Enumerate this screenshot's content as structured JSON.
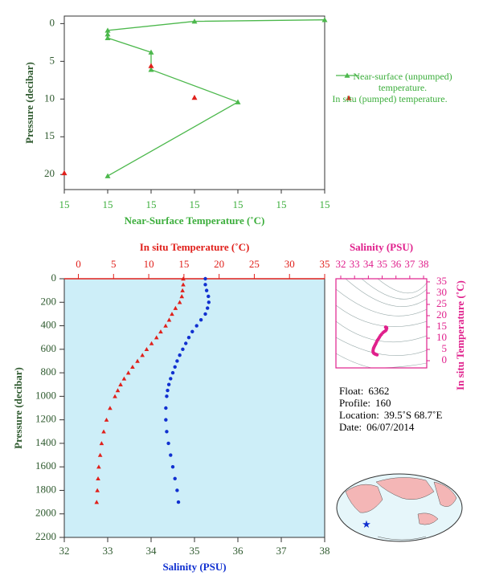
{
  "chart_data": [
    {
      "type": "line",
      "xlabel": "Near-Surface Temperature (˚C)",
      "ylabel": "Pressure (decibar)",
      "xlim": [
        15.0,
        15.6
      ],
      "xticks": [
        {
          "value": 15.0,
          "label": "15"
        },
        {
          "value": 15.1,
          "label": "15"
        },
        {
          "value": 15.2,
          "label": "15"
        },
        {
          "value": 15.3,
          "label": "15"
        },
        {
          "value": 15.4,
          "label": "15"
        },
        {
          "value": 15.5,
          "label": "15"
        },
        {
          "value": 15.6,
          "label": "15"
        }
      ],
      "ylim": [
        -1,
        22
      ],
      "y_reversed": true,
      "yticks": [
        0,
        5,
        10,
        15,
        20
      ],
      "series": [
        {
          "name": "Near-surface (unpumped) temperature.",
          "color": "#4cb84c",
          "line": true,
          "x": [
            15.6,
            15.3,
            15.1,
            15.1,
            15.1,
            15.2,
            15.2,
            15.4,
            15.1
          ],
          "y": [
            -0.5,
            -0.3,
            0.9,
            1.4,
            1.9,
            3.8,
            6.1,
            10.4,
            20.2
          ]
        },
        {
          "name": "In situ (pumped) temperature.",
          "color": "#e0201b",
          "line": false,
          "x": [
            15.2,
            15.3,
            15.0
          ],
          "y": [
            5.6,
            9.8,
            19.8
          ]
        }
      ]
    },
    {
      "type": "profile",
      "ylabel": "Pressure (decibar)",
      "ylim": [
        0,
        2200
      ],
      "y_reversed": true,
      "yticks": [
        0,
        200,
        400,
        600,
        800,
        1000,
        1200,
        1400,
        1600,
        1800,
        2000,
        2200
      ],
      "xlim": [
        32,
        38
      ],
      "xticks": [
        32,
        33,
        34,
        35,
        36,
        37,
        38
      ],
      "x2lim": [
        -2,
        35
      ],
      "x2ticks": [
        0,
        5,
        10,
        15,
        20,
        25,
        30,
        35
      ],
      "background": "#cdeef8",
      "y": [
        0,
        50,
        100,
        150,
        200,
        250,
        300,
        350,
        400,
        450,
        500,
        550,
        600,
        650,
        700,
        750,
        800,
        850,
        900,
        950,
        1000,
        1100,
        1200,
        1300,
        1400,
        1500,
        1600,
        1700,
        1800,
        1900
      ],
      "series": [
        {
          "name": "In situ Temperature (˚C)",
          "color": "#e0201b",
          "axis": "x2",
          "marker": "triangle",
          "values": [
            14.9,
            14.9,
            14.8,
            14.7,
            14.4,
            13.8,
            13.3,
            12.9,
            12.4,
            11.7,
            11.1,
            10.4,
            9.7,
            9.1,
            8.4,
            7.7,
            7.1,
            6.5,
            6.0,
            5.6,
            5.2,
            4.5,
            4.0,
            3.6,
            3.3,
            3.1,
            2.9,
            2.8,
            2.7,
            2.6
          ]
        },
        {
          "name": "Salinity (PSU)",
          "color": "#1030d0",
          "axis": "x",
          "marker": "dot",
          "values": [
            35.25,
            35.25,
            35.28,
            35.32,
            35.33,
            35.3,
            35.25,
            35.15,
            35.05,
            34.95,
            34.87,
            34.8,
            34.73,
            34.66,
            34.6,
            34.55,
            34.5,
            34.45,
            34.41,
            34.38,
            34.36,
            34.34,
            34.34,
            34.36,
            34.4,
            34.45,
            34.5,
            34.55,
            34.6,
            34.63
          ]
        }
      ]
    },
    {
      "type": "scatter",
      "xlabel": "Salinity (PSU)",
      "ylabel": "In situ Temperature (˚C)",
      "xlim": [
        31.65,
        38.23
      ],
      "xticks": [
        32,
        33,
        34,
        35,
        36,
        37,
        38
      ],
      "ylim": [
        -3.2,
        36.4
      ],
      "yticks": [
        0,
        5,
        10,
        15,
        20,
        25,
        30,
        35
      ],
      "color": "#e0208c"
    }
  ],
  "info": [
    {
      "label": "Float:",
      "value": "6362"
    },
    {
      "label": "Profile:",
      "value": "160"
    },
    {
      "label": "Location:",
      "value": "39.5˚S  68.7˚E"
    },
    {
      "label": "Date:",
      "value": "06/07/2014"
    }
  ]
}
